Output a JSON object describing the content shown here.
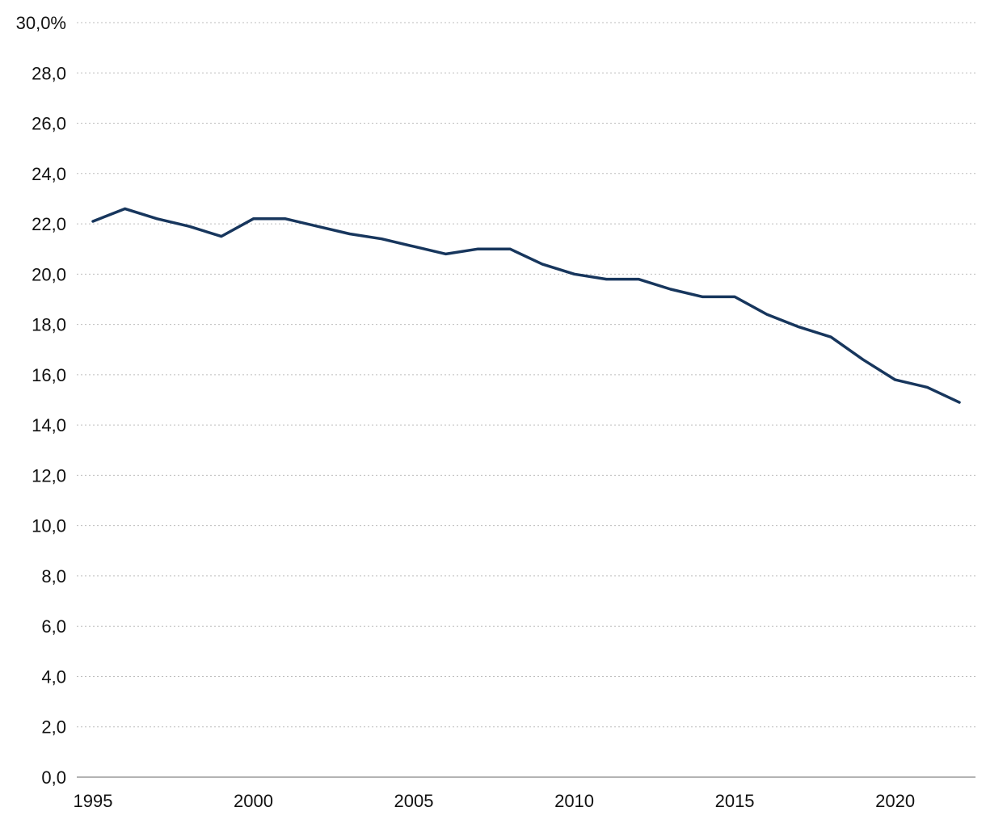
{
  "chart_data": {
    "type": "line",
    "title": "",
    "xlabel": "",
    "ylabel": "",
    "xlim": [
      1995,
      2022
    ],
    "ylim": [
      0,
      30
    ],
    "grid": true,
    "legend": "none",
    "x_ticks": [
      1995,
      2000,
      2005,
      2010,
      2015,
      2020
    ],
    "y_ticks": [
      0,
      2,
      4,
      6,
      8,
      10,
      12,
      14,
      16,
      18,
      20,
      22,
      24,
      26,
      28,
      30
    ],
    "y_tick_labels": [
      "0,0",
      "2,0",
      "4,0",
      "6,0",
      "8,0",
      "10,0",
      "12,0",
      "14,0",
      "16,0",
      "18,0",
      "20,0",
      "22,0",
      "24,0",
      "26,0",
      "28,0",
      "30,0%"
    ],
    "colors": {
      "line": "#17365d",
      "grid": "#bdbdbd",
      "axis": "#9a9a9a"
    },
    "series": [
      {
        "x": [
          1995,
          1996,
          1997,
          1998,
          1999,
          2000,
          2001,
          2002,
          2003,
          2004,
          2005,
          2006,
          2007,
          2008,
          2009,
          2010,
          2011,
          2012,
          2013,
          2014,
          2015,
          2016,
          2017,
          2018,
          2019,
          2020,
          2021,
          2022
        ],
        "values": [
          22.1,
          22.6,
          22.2,
          21.9,
          21.5,
          22.2,
          22.2,
          21.9,
          21.6,
          21.4,
          21.1,
          20.8,
          21.0,
          21.0,
          20.4,
          20.0,
          19.8,
          19.8,
          19.4,
          19.1,
          19.1,
          18.4,
          17.9,
          17.5,
          16.6,
          15.8,
          15.5,
          14.9
        ]
      }
    ]
  }
}
